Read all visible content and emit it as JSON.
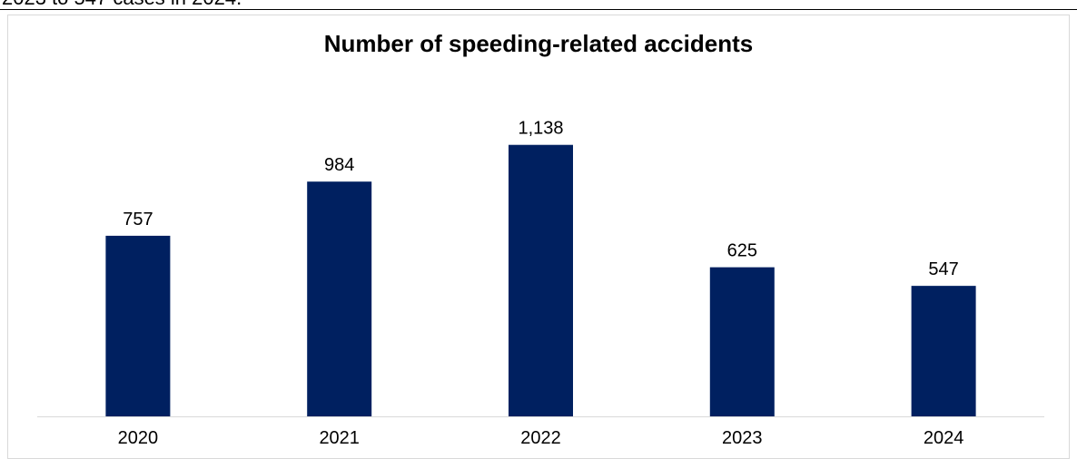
{
  "cut_text": "2023 to 547 cases in 2024.",
  "chart_data": {
    "type": "bar",
    "title": "Number of speeding-related accidents",
    "categories": [
      "2020",
      "2021",
      "2022",
      "2023",
      "2024"
    ],
    "values": [
      757,
      984,
      1138,
      625,
      547
    ],
    "data_labels": [
      "757",
      "984",
      "1,138",
      "625",
      "547"
    ],
    "xlabel": "",
    "ylabel": "",
    "ylim": [
      0,
      1300
    ],
    "grid": false,
    "legend": "none",
    "bar_color": "#002060",
    "axis_color": "#d9d9d9"
  }
}
